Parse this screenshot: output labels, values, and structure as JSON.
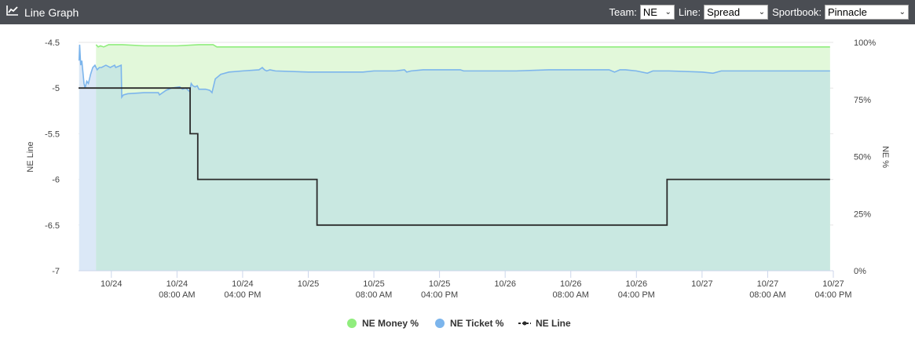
{
  "header": {
    "title": "Line Graph",
    "icon": "line-chart-icon",
    "team_label": "Team:",
    "team_value": "NE",
    "line_label": "Line:",
    "line_value": "Spread",
    "sportbook_label": "Sportbook:",
    "sportbook_value": "Pinnacle"
  },
  "chart_data": {
    "type": "line",
    "ylabel": "NE Line",
    "y2label": "NE %",
    "ylim": [
      -7,
      -4.5
    ],
    "y2lim": [
      0,
      100
    ],
    "yticks": [
      "-4.5",
      "-5",
      "-5.5",
      "-6",
      "-6.5",
      "-7"
    ],
    "y2ticks": [
      "100%",
      "75%",
      "50%",
      "25%",
      "0%"
    ],
    "xlim": [
      0,
      138
    ],
    "xticks": [
      {
        "t": 6,
        "line1": "10/24",
        "line2": ""
      },
      {
        "t": 18,
        "line1": "10/24",
        "line2": "08:00 AM"
      },
      {
        "t": 30,
        "line1": "10/24",
        "line2": "04:00 PM"
      },
      {
        "t": 42,
        "line1": "10/25",
        "line2": ""
      },
      {
        "t": 54,
        "line1": "10/25",
        "line2": "08:00 AM"
      },
      {
        "t": 66,
        "line1": "10/25",
        "line2": "04:00 PM"
      },
      {
        "t": 78,
        "line1": "10/26",
        "line2": ""
      },
      {
        "t": 90,
        "line1": "10/26",
        "line2": "08:00 AM"
      },
      {
        "t": 102,
        "line1": "10/26",
        "line2": "04:00 PM"
      },
      {
        "t": 114,
        "line1": "10/27",
        "line2": ""
      },
      {
        "t": 126,
        "line1": "10/27",
        "line2": "08:00 AM"
      },
      {
        "t": 138,
        "line1": "10/27",
        "line2": "04:00 PM"
      }
    ],
    "grid": true,
    "legend_position": "bottom-center",
    "series": [
      {
        "name": "NE Money %",
        "axis": "right",
        "kind": "area",
        "color": "#90ed7d",
        "fill": "#e2f8da",
        "points": [
          [
            3.2,
            99
          ],
          [
            3.6,
            98
          ],
          [
            4.0,
            98.5
          ],
          [
            4.6,
            98
          ],
          [
            5.5,
            99
          ],
          [
            8,
            99
          ],
          [
            12,
            98.5
          ],
          [
            18,
            98.5
          ],
          [
            22,
            99
          ],
          [
            24.6,
            99
          ],
          [
            25.3,
            98
          ],
          [
            30,
            98
          ],
          [
            60,
            98
          ],
          [
            90,
            98
          ],
          [
            120,
            98
          ],
          [
            137.4,
            98
          ]
        ]
      },
      {
        "name": "NE Ticket %",
        "axis": "right",
        "kind": "area",
        "color": "#7cb5ec",
        "fill": "#c9e8e1",
        "left_fill": "#dbe8f7",
        "points": [
          [
            0.1,
            92
          ],
          [
            0.2,
            99
          ],
          [
            0.4,
            90
          ],
          [
            0.6,
            92
          ],
          [
            1.0,
            82
          ],
          [
            1.2,
            80
          ],
          [
            1.5,
            83
          ],
          [
            1.8,
            82
          ],
          [
            2.2,
            86
          ],
          [
            2.6,
            89
          ],
          [
            3.0,
            90
          ],
          [
            3.4,
            88
          ],
          [
            3.8,
            89
          ],
          [
            4.2,
            89
          ],
          [
            5.0,
            90
          ],
          [
            5.8,
            89
          ],
          [
            6.6,
            90
          ],
          [
            6.8,
            89
          ],
          [
            7.8,
            90
          ],
          [
            7.9,
            76
          ],
          [
            8.2,
            77
          ],
          [
            9,
            77.5
          ],
          [
            12,
            78
          ],
          [
            14.6,
            78
          ],
          [
            14.8,
            77
          ],
          [
            16,
            79
          ],
          [
            17,
            80
          ],
          [
            18.5,
            80.5
          ],
          [
            19,
            79.5
          ],
          [
            19.6,
            80
          ],
          [
            20.3,
            78.5
          ],
          [
            20.6,
            82
          ],
          [
            20.9,
            81
          ],
          [
            21.3,
            80.5
          ],
          [
            21.7,
            81
          ],
          [
            22,
            79.5
          ],
          [
            23.2,
            79.5
          ],
          [
            24,
            79
          ],
          [
            24.4,
            78
          ],
          [
            24.6,
            80
          ],
          [
            25,
            84
          ],
          [
            26,
            86
          ],
          [
            27.5,
            87
          ],
          [
            30,
            87.5
          ],
          [
            33,
            88
          ],
          [
            33.6,
            89
          ],
          [
            34,
            88
          ],
          [
            34.4,
            87.5
          ],
          [
            35,
            88
          ],
          [
            36,
            87.5
          ],
          [
            42,
            87
          ],
          [
            48,
            87
          ],
          [
            52,
            87
          ],
          [
            54,
            87.5
          ],
          [
            58,
            87.5
          ],
          [
            59.6,
            88
          ],
          [
            60,
            87
          ],
          [
            60.8,
            87.5
          ],
          [
            63,
            88
          ],
          [
            68,
            88
          ],
          [
            69.8,
            88
          ],
          [
            70.4,
            87.5
          ],
          [
            72,
            87.5
          ],
          [
            80,
            87.5
          ],
          [
            86,
            88
          ],
          [
            92,
            88
          ],
          [
            97,
            88
          ],
          [
            98,
            87
          ],
          [
            99,
            88
          ],
          [
            100,
            88
          ],
          [
            102,
            87.5
          ],
          [
            104,
            86.5
          ],
          [
            105,
            87.5
          ],
          [
            108,
            87.5
          ],
          [
            114,
            87
          ],
          [
            116,
            86.5
          ],
          [
            117.5,
            87.5
          ],
          [
            124,
            87.5
          ],
          [
            130,
            87.5
          ],
          [
            137.4,
            87.5
          ]
        ]
      },
      {
        "name": "NE Line",
        "axis": "left",
        "kind": "step",
        "color": "#2b2b2b",
        "points": [
          [
            0,
            -5
          ],
          [
            20,
            -5
          ],
          [
            20.4,
            -5
          ],
          [
            20.4,
            -5.5
          ],
          [
            21.8,
            -5.5
          ],
          [
            21.8,
            -6
          ],
          [
            43.6,
            -6
          ],
          [
            43.6,
            -6.5
          ],
          [
            107.6,
            -6.5
          ],
          [
            107.6,
            -6
          ],
          [
            137.4,
            -6
          ]
        ]
      }
    ]
  }
}
